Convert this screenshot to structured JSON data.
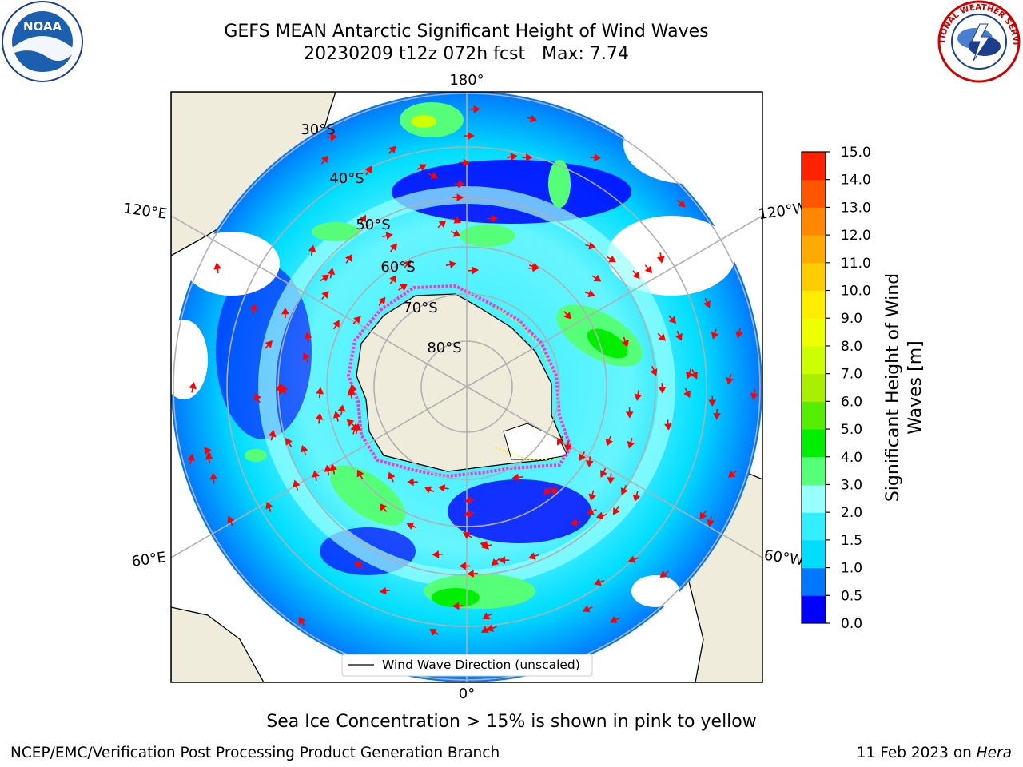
{
  "title": {
    "line1": "GEFS MEAN Antarctic Significant Height of Wind Waves",
    "line2": "20230209 t12z 072h fcst   Max: 7.74"
  },
  "logos": {
    "noaa_text": "NOAA",
    "nws_text": "NATIONAL WEATHER SERVICE"
  },
  "map": {
    "projection": "south-polar-stereographic",
    "longitude_labels": {
      "top": "180°",
      "bottom": "0°",
      "upper_left": "120°E",
      "upper_right": "120°W",
      "lower_left": "60°E",
      "lower_right": "60°W"
    },
    "latitude_labels": [
      "30°S",
      "40°S",
      "50°S",
      "60°S",
      "70°S",
      "80°S"
    ],
    "legend_label": "Wind Wave Direction (unscaled)",
    "max_value": 7.74,
    "land_color": "#efecdc",
    "arrow_color": "#ff0000",
    "ice_edge_colors": [
      "#ff33cc",
      "#ff00ff",
      "#ffff00"
    ]
  },
  "colorbar": {
    "label": "Significant Height of Wind Waves [m]",
    "label_line1": "Significant Height of Wind",
    "label_line2": "Waves [m]",
    "ticks": [
      "0.0",
      "0.5",
      "1.0",
      "1.5",
      "2.0",
      "3.0",
      "4.0",
      "5.0",
      "6.0",
      "7.0",
      "8.0",
      "9.0",
      "10.0",
      "11.0",
      "12.0",
      "13.0",
      "14.0",
      "15.0"
    ],
    "colors": [
      "#0000ff",
      "#0077ff",
      "#00ddff",
      "#33eeff",
      "#99ffff",
      "#55ff77",
      "#00ee00",
      "#55ee00",
      "#aaee00",
      "#ccff00",
      "#eeff00",
      "#ffee00",
      "#ffcc00",
      "#ffaa00",
      "#ff8800",
      "#ff5500",
      "#ff2200"
    ]
  },
  "ice_note": "Sea Ice Concentration > 15% is shown in pink to yellow",
  "footer": {
    "left": "NCEP/EMC/Verification Post Processing Product Generation Branch",
    "right_date": "11 Feb 2023 on",
    "right_machine": "Hera"
  }
}
